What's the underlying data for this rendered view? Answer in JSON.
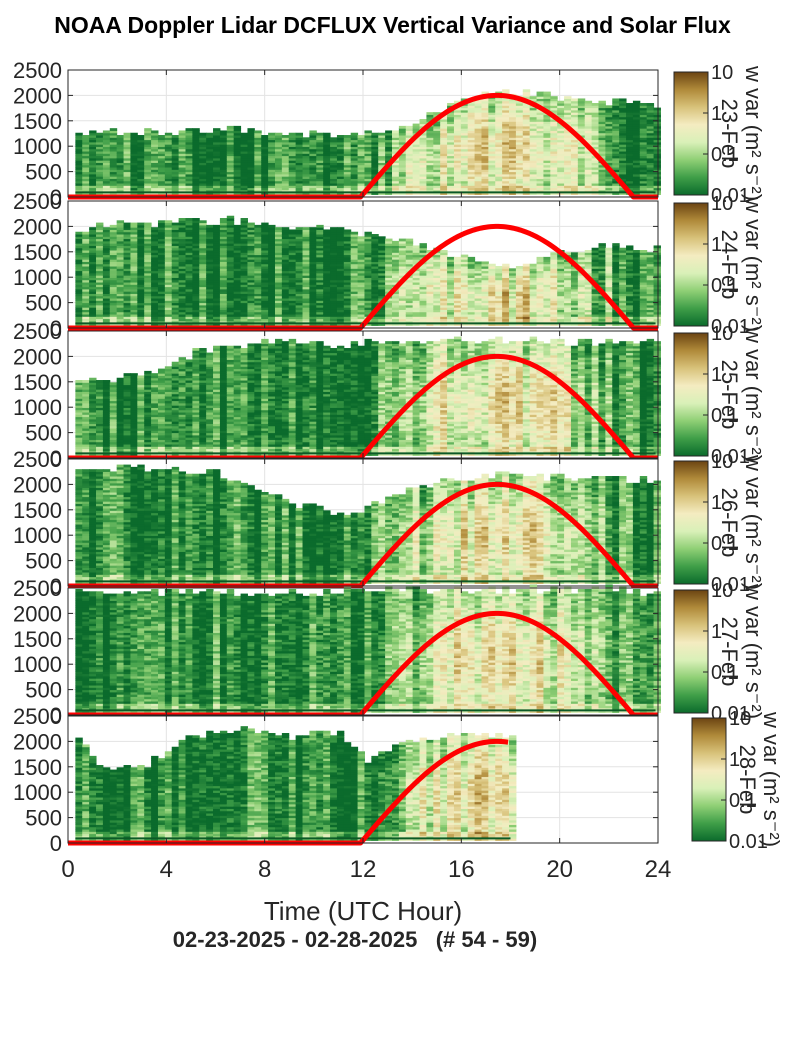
{
  "chart_data": {
    "type": "heatmap",
    "title": "NOAA Doppler Lidar DCFLUX Vertical Variance and Solar Flux",
    "subtitle": "02-23-2025 - 02-28-2025   (# 54 - 59)",
    "xlabel": "Time (UTC Hour)",
    "xlim": [
      0,
      24
    ],
    "x_ticks": [
      "0",
      "4",
      "8",
      "12",
      "16",
      "20",
      "24"
    ],
    "ylim": [
      0,
      2500
    ],
    "y_ticks": [
      "0",
      "500",
      "1000",
      "1500",
      "2000",
      "2500"
    ],
    "colorbar_label": "w var (m² s⁻²)",
    "colorbar_ticks": [
      "0.01",
      "0.1",
      "1",
      "10"
    ],
    "colorbar_range": [
      0.01,
      10
    ],
    "colorbar_scale": "log",
    "colormap": [
      "#0b6b2c",
      "#3f9e48",
      "#8fcf75",
      "#d9f0b8",
      "#f4ecc1",
      "#d8c27a",
      "#b08a3a",
      "#6b4412"
    ],
    "solar_flux_color": "#ff0000",
    "grid": true,
    "panels": [
      {
        "date": "23-Feb",
        "x_end": 24,
        "sunrise": 11.9,
        "sunset": 23.0,
        "solar_peak_height": 2000,
        "lidar_start": 0.3,
        "lidar_end": 23.9,
        "layer_top": [
          1200,
          1230,
          1250,
          1260,
          1280,
          1300,
          1300,
          1280,
          1260,
          1250,
          1240,
          1230,
          1250,
          1300,
          1500,
          1700,
          1900,
          2000,
          2050,
          2000,
          1950,
          1900,
          1850,
          1800
        ]
      },
      {
        "date": "24-Feb",
        "x_end": 24,
        "sunrise": 11.9,
        "sunset": 23.0,
        "solar_peak_height": 2000,
        "lidar_start": 0.3,
        "lidar_end": 23.9,
        "layer_top": [
          1900,
          2000,
          2050,
          2050,
          2050,
          2100,
          2100,
          2100,
          2050,
          2000,
          1950,
          1900,
          1850,
          1750,
          1650,
          1500,
          1400,
          1250,
          1200,
          1300,
          1450,
          1550,
          1600,
          1550
        ]
      },
      {
        "date": "25-Feb",
        "x_end": 24,
        "sunrise": 11.9,
        "sunset": 23.0,
        "solar_peak_height": 2000,
        "lidar_start": 0.3,
        "lidar_end": 23.9,
        "layer_top": [
          1500,
          1500,
          1550,
          1600,
          1800,
          2050,
          2150,
          2200,
          2250,
          2250,
          2250,
          2200,
          2250,
          2250,
          2300,
          2300,
          2300,
          2300,
          2300,
          2300,
          2250,
          2250,
          2250,
          2250
        ]
      },
      {
        "date": "26-Feb",
        "x_end": 24,
        "sunrise": 11.9,
        "sunset": 23.0,
        "solar_peak_height": 2000,
        "lidar_start": 0.3,
        "lidar_end": 23.9,
        "layer_top": [
          2300,
          2300,
          2300,
          2300,
          2250,
          2250,
          2200,
          2000,
          1800,
          1600,
          1500,
          1400,
          1500,
          1700,
          1900,
          2050,
          2100,
          2150,
          2150,
          2150,
          2100,
          2100,
          2100,
          2050
        ]
      },
      {
        "date": "27-Feb",
        "x_end": 24,
        "sunrise": 11.9,
        "sunset": 23.0,
        "solar_peak_height": 2000,
        "lidar_start": 0.3,
        "lidar_end": 23.9,
        "layer_top": [
          2400,
          2400,
          2400,
          2400,
          2400,
          2400,
          2400,
          2400,
          2400,
          2400,
          2400,
          2400,
          2450,
          2450,
          2450,
          2450,
          2450,
          2450,
          2450,
          2450,
          2450,
          2450,
          2450,
          2400
        ]
      },
      {
        "date": "28-Feb",
        "x_end": 18,
        "sunrise": 11.9,
        "sunset": 23.0,
        "solar_peak_height": 2000,
        "lidar_start": 0.3,
        "lidar_end": 18.0,
        "layer_top": [
          2300,
          1600,
          1400,
          1500,
          1850,
          2050,
          2150,
          2200,
          2150,
          2100,
          2150,
          2150,
          1600,
          1900,
          2050,
          2050,
          2150,
          2100
        ]
      }
    ]
  }
}
